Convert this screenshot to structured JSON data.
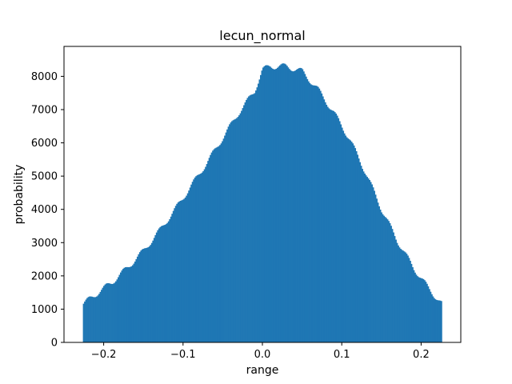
{
  "chart_data": {
    "type": "bar",
    "title": "lecun_normal",
    "xlabel": "range",
    "ylabel": "probability",
    "xlim": [
      -0.25,
      0.25
    ],
    "ylim": [
      0,
      8900
    ],
    "xticks": [
      -0.2,
      -0.1,
      0.0,
      0.1,
      0.2
    ],
    "xtick_labels": [
      "−0.2",
      "−0.1",
      "0.0",
      "0.1",
      "0.2"
    ],
    "yticks": [
      0,
      1000,
      2000,
      3000,
      4000,
      5000,
      6000,
      7000,
      8000
    ],
    "ytick_labels": [
      "0",
      "1000",
      "2000",
      "3000",
      "4000",
      "5000",
      "6000",
      "7000",
      "8000"
    ],
    "grid": false,
    "bar_color": "#1f77b4",
    "x": [
      -0.2262,
      -0.21,
      -0.19,
      -0.17,
      -0.15,
      -0.13,
      -0.11,
      -0.09,
      -0.07,
      -0.05,
      -0.03,
      -0.01,
      0.0,
      0.01,
      0.03,
      0.05,
      0.07,
      0.09,
      0.11,
      0.13,
      0.15,
      0.17,
      0.19,
      0.21,
      0.2262
    ],
    "values": [
      1150,
      1450,
      1800,
      2250,
      2750,
      3350,
      4000,
      4700,
      5400,
      6150,
      6900,
      7550,
      8200,
      8300,
      8300,
      8150,
      7600,
      6900,
      6100,
      5100,
      4000,
      3050,
      2250,
      1600,
      1150
    ]
  }
}
